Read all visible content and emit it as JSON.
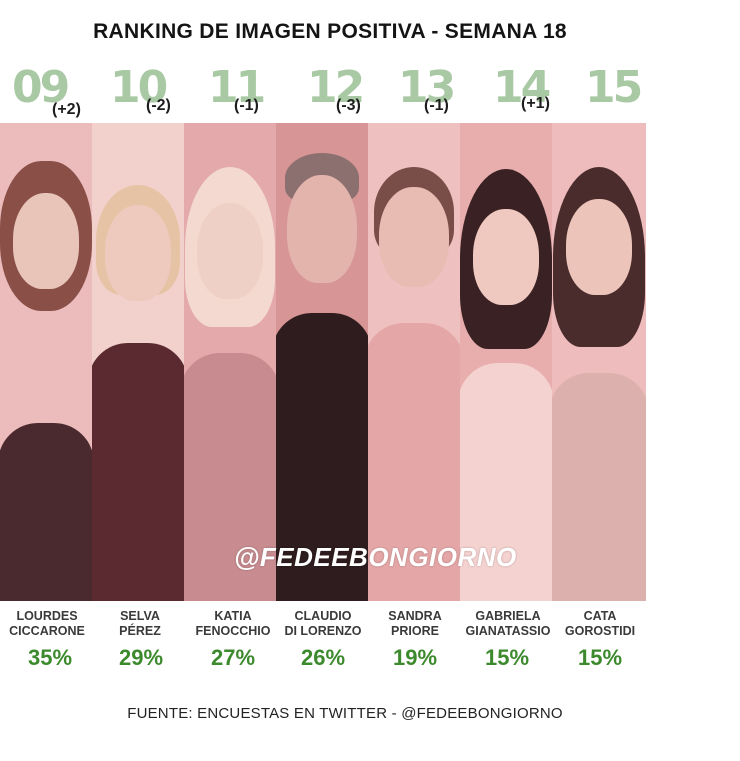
{
  "title": "RANKING DE IMAGEN POSITIVA - SEMANA 18",
  "watermark": "@FEDEEBONGIORNO",
  "footer": "FUENTE: ENCUESTAS EN TWITTER - @FEDEEBONGIORNO",
  "colors": {
    "rank_number": "#a9c9a4",
    "percent": "#3d8a2e",
    "panel_tint": "#e9b3b3"
  },
  "participants": [
    {
      "rank": "09",
      "change": "(+2)",
      "name": "LOURDES\nCICCARONE",
      "percent": "35%"
    },
    {
      "rank": "10",
      "change": "(-2)",
      "name": "SELVA\nPÉREZ",
      "percent": "29%"
    },
    {
      "rank": "11",
      "change": "(-1)",
      "name": "KATIA\nFENOCCHIO",
      "percent": "27%"
    },
    {
      "rank": "12",
      "change": "(-3)",
      "name": "CLAUDIO\nDI LORENZO",
      "percent": "26%"
    },
    {
      "rank": "13",
      "change": "(-1)",
      "name": "SANDRA\nPRIORE",
      "percent": "19%"
    },
    {
      "rank": "14",
      "change": "(+1)",
      "name": "GABRIELA\nGIANATASSIO",
      "percent": "15%"
    },
    {
      "rank": "15",
      "change": "",
      "name": "CATA\nGOROSTIDI",
      "percent": "15%"
    }
  ]
}
